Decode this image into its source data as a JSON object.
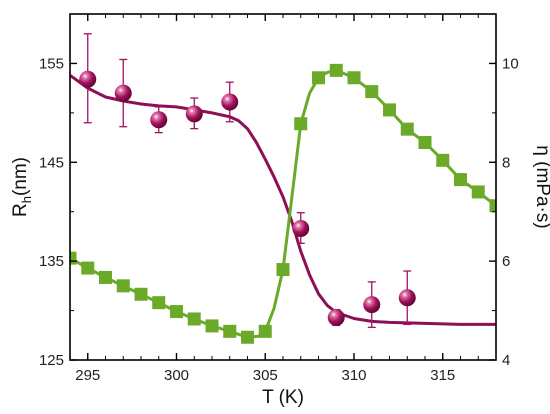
{
  "chart_data": {
    "type": "scatter",
    "x_axis": {
      "label": "T (K)",
      "range": [
        294,
        318
      ],
      "ticks": [
        295,
        300,
        305,
        310,
        315
      ]
    },
    "y_left": {
      "label_main": "R",
      "label_sub": "h",
      "label_tail": "(nm)",
      "range": [
        125,
        160
      ],
      "ticks": [
        125,
        135,
        145,
        155
      ]
    },
    "y_right": {
      "label": "η (mPa·s)",
      "range": [
        4,
        11
      ],
      "ticks": [
        4,
        6,
        8,
        10
      ]
    },
    "grid": false,
    "legend": "none",
    "series": [
      {
        "axis": "left",
        "marker": "sphere",
        "color": "#a3115f",
        "fit_color": "#8e0f55",
        "points": [
          {
            "x": 295,
            "y": 153.4,
            "err_up": 4.6,
            "err_down": 4.4
          },
          {
            "x": 297,
            "y": 152.0,
            "err_up": 3.4,
            "err_down": 3.4
          },
          {
            "x": 299,
            "y": 149.3,
            "err_up": 1.3,
            "err_down": 1.3
          },
          {
            "x": 301,
            "y": 149.9,
            "err_up": 1.6,
            "err_down": 1.5
          },
          {
            "x": 303,
            "y": 151.1,
            "err_up": 2.0,
            "err_down": 2.0
          },
          {
            "x": 307,
            "y": 138.3,
            "err_up": 1.6,
            "err_down": 1.5
          },
          {
            "x": 309,
            "y": 129.3,
            "err_up": 0.8,
            "err_down": 0.8
          },
          {
            "x": 311,
            "y": 130.6,
            "err_up": 2.3,
            "err_down": 2.3
          },
          {
            "x": 313,
            "y": 131.3,
            "err_up": 2.7,
            "err_down": 2.7
          }
        ],
        "fit": [
          [
            294,
            153.8
          ],
          [
            295,
            152.5
          ],
          [
            296,
            151.6
          ],
          [
            297,
            151.2
          ],
          [
            298,
            150.9
          ],
          [
            299,
            150.7
          ],
          [
            300,
            150.6
          ],
          [
            301,
            150.3
          ],
          [
            302,
            150.0
          ],
          [
            303,
            149.6
          ],
          [
            303.5,
            149.2
          ],
          [
            304,
            148.4
          ],
          [
            304.5,
            147.0
          ],
          [
            305,
            145.3
          ],
          [
            305.5,
            143.5
          ],
          [
            306,
            141.5
          ],
          [
            306.5,
            139.0
          ],
          [
            307,
            136.0
          ],
          [
            307.5,
            133.6
          ],
          [
            308,
            131.7
          ],
          [
            308.5,
            130.5
          ],
          [
            309,
            129.8
          ],
          [
            310,
            129.2
          ],
          [
            311,
            128.9
          ],
          [
            312,
            128.8
          ],
          [
            314,
            128.7
          ],
          [
            316,
            128.6
          ],
          [
            318,
            128.6
          ]
        ]
      },
      {
        "axis": "right",
        "marker": "square",
        "color": "#6aaa28",
        "fit_color": "#6aaa28",
        "points": [
          {
            "x": 294,
            "y": 6.06
          },
          {
            "x": 295,
            "y": 5.86
          },
          {
            "x": 296,
            "y": 5.67
          },
          {
            "x": 297,
            "y": 5.5
          },
          {
            "x": 298,
            "y": 5.33
          },
          {
            "x": 299,
            "y": 5.16
          },
          {
            "x": 300,
            "y": 4.98
          },
          {
            "x": 301,
            "y": 4.83
          },
          {
            "x": 302,
            "y": 4.69
          },
          {
            "x": 303,
            "y": 4.58
          },
          {
            "x": 304,
            "y": 4.46
          },
          {
            "x": 305,
            "y": 4.58
          },
          {
            "x": 306,
            "y": 5.83
          },
          {
            "x": 307,
            "y": 8.78
          },
          {
            "x": 308,
            "y": 9.71
          },
          {
            "x": 309,
            "y": 9.86
          },
          {
            "x": 310,
            "y": 9.71
          },
          {
            "x": 311,
            "y": 9.43
          },
          {
            "x": 312,
            "y": 9.06
          },
          {
            "x": 313,
            "y": 8.67
          },
          {
            "x": 314,
            "y": 8.4
          },
          {
            "x": 315,
            "y": 8.04
          },
          {
            "x": 316,
            "y": 7.65
          },
          {
            "x": 317,
            "y": 7.4
          },
          {
            "x": 318,
            "y": 7.12
          }
        ],
        "fit": [
          [
            294,
            6.06
          ],
          [
            295,
            5.86
          ],
          [
            296,
            5.67
          ],
          [
            297,
            5.5
          ],
          [
            298,
            5.33
          ],
          [
            299,
            5.16
          ],
          [
            300,
            4.98
          ],
          [
            301,
            4.83
          ],
          [
            302,
            4.69
          ],
          [
            303,
            4.58
          ],
          [
            304,
            4.46
          ],
          [
            304.6,
            4.48
          ],
          [
            305,
            4.58
          ],
          [
            305.5,
            5.05
          ],
          [
            306,
            5.83
          ],
          [
            306.5,
            7.3
          ],
          [
            307,
            8.78
          ],
          [
            307.5,
            9.4
          ],
          [
            308,
            9.71
          ],
          [
            308.5,
            9.82
          ],
          [
            309,
            9.86
          ],
          [
            310,
            9.71
          ],
          [
            311,
            9.43
          ],
          [
            312,
            9.06
          ],
          [
            313,
            8.67
          ],
          [
            314,
            8.4
          ],
          [
            315,
            8.04
          ],
          [
            316,
            7.65
          ],
          [
            317,
            7.4
          ],
          [
            318,
            7.12
          ]
        ]
      }
    ]
  }
}
